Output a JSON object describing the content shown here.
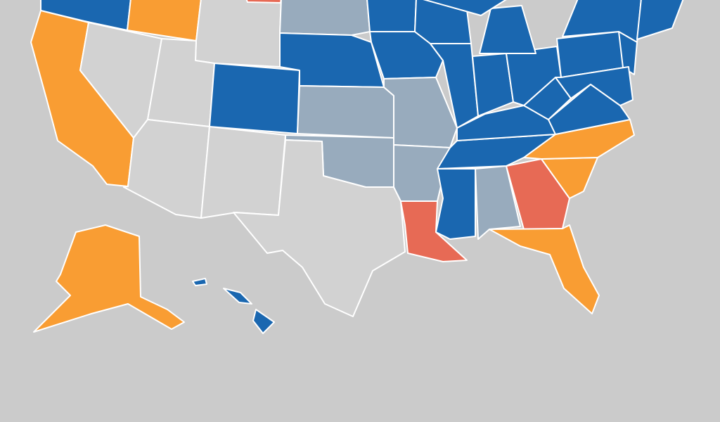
{
  "map": {
    "colors": {
      "background": "#cbcbcb",
      "blue": "#1a67b0",
      "orange": "#f99d33",
      "red": "#e76a55",
      "slate": "#98abbd",
      "grey": "#d2d2d2",
      "border": "#ffffff"
    },
    "states": [
      {
        "id": "oregon",
        "category": "blue"
      },
      {
        "id": "idaho",
        "category": "orange"
      },
      {
        "id": "wyoming",
        "category": "grey"
      },
      {
        "id": "montana",
        "category": "red"
      },
      {
        "id": "california",
        "category": "orange"
      },
      {
        "id": "nevada",
        "category": "grey"
      },
      {
        "id": "utah",
        "category": "grey"
      },
      {
        "id": "arizona",
        "category": "grey"
      },
      {
        "id": "new-mexico",
        "category": "grey"
      },
      {
        "id": "colorado",
        "category": "blue"
      },
      {
        "id": "south-dakota",
        "category": "slate"
      },
      {
        "id": "nebraska",
        "category": "blue"
      },
      {
        "id": "kansas",
        "category": "slate"
      },
      {
        "id": "oklahoma",
        "category": "slate"
      },
      {
        "id": "texas",
        "category": "grey"
      },
      {
        "id": "minnesota",
        "category": "blue"
      },
      {
        "id": "iowa",
        "category": "blue"
      },
      {
        "id": "missouri",
        "category": "slate"
      },
      {
        "id": "arkansas",
        "category": "slate"
      },
      {
        "id": "louisiana",
        "category": "red"
      },
      {
        "id": "mississippi",
        "category": "blue"
      },
      {
        "id": "alabama",
        "category": "slate"
      },
      {
        "id": "georgia",
        "category": "red"
      },
      {
        "id": "florida",
        "category": "orange"
      },
      {
        "id": "south-carolina",
        "category": "orange"
      },
      {
        "id": "north-carolina",
        "category": "orange"
      },
      {
        "id": "tennessee",
        "category": "blue"
      },
      {
        "id": "kentucky",
        "category": "blue"
      },
      {
        "id": "virginia",
        "category": "blue"
      },
      {
        "id": "west-virginia",
        "category": "blue"
      },
      {
        "id": "wisconsin",
        "category": "blue"
      },
      {
        "id": "illinois",
        "category": "blue"
      },
      {
        "id": "indiana",
        "category": "blue"
      },
      {
        "id": "ohio",
        "category": "blue"
      },
      {
        "id": "michigan",
        "category": "blue"
      },
      {
        "id": "pennsylvania",
        "category": "blue"
      },
      {
        "id": "new-york",
        "category": "blue"
      },
      {
        "id": "new-jersey",
        "category": "blue"
      },
      {
        "id": "new-england",
        "category": "blue"
      },
      {
        "id": "maryland-delaware",
        "category": "blue"
      },
      {
        "id": "alaska",
        "category": "orange"
      },
      {
        "id": "hawaii",
        "category": "blue"
      }
    ]
  }
}
